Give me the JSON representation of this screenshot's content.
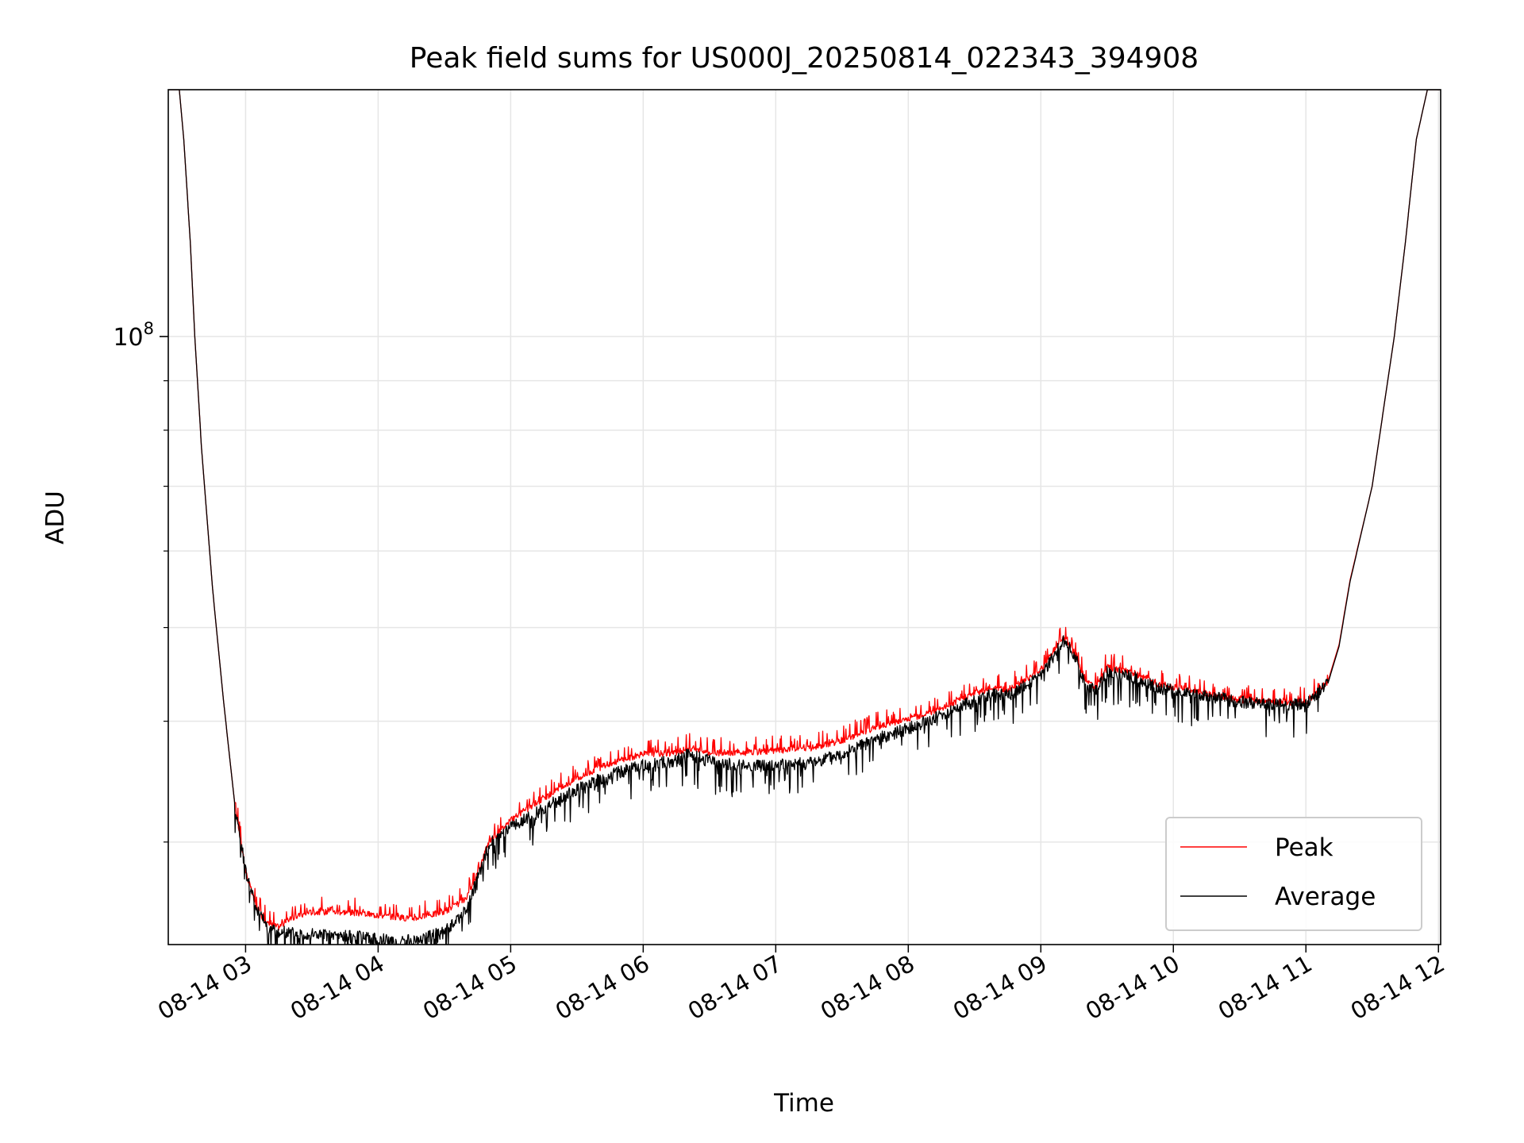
{
  "chart_data": {
    "type": "line",
    "title": "Peak field sums for US000J_20250814_022343_394908",
    "xlabel": "Time",
    "ylabel": "ADU",
    "y_scale": "log",
    "ylim": [
      23500000,
      180000000
    ],
    "xlim": [
      "08-14 02:25",
      "08-14 12:01"
    ],
    "grid": true,
    "legend_position": "lower right",
    "x_ticks": [
      "08-14 03",
      "08-14 04",
      "08-14 05",
      "08-14 06",
      "08-14 07",
      "08-14 08",
      "08-14 09",
      "08-14 10",
      "08-14 11",
      "08-14 12"
    ],
    "y_ticks": [
      {
        "value": 100000000,
        "base": "10",
        "exp": "8"
      }
    ],
    "series": [
      {
        "name": "Peak",
        "color": "#ff0000",
        "x": [
          "02:25",
          "02:30",
          "02:32",
          "02:35",
          "02:37",
          "02:40",
          "02:45",
          "02:50",
          "02:55",
          "03:00",
          "03:05",
          "03:10",
          "03:15",
          "03:20",
          "03:30",
          "03:45",
          "04:00",
          "04:15",
          "04:30",
          "04:40",
          "04:45",
          "04:50",
          "05:00",
          "05:15",
          "05:30",
          "05:45",
          "06:00",
          "06:15",
          "06:20",
          "06:30",
          "06:45",
          "07:00",
          "07:15",
          "07:30",
          "07:45",
          "08:00",
          "08:15",
          "08:30",
          "08:40",
          "08:45",
          "09:00",
          "09:10",
          "09:15",
          "09:20",
          "09:25",
          "09:30",
          "09:40",
          "09:45",
          "09:55",
          "10:05",
          "10:15",
          "10:30",
          "10:45",
          "11:00",
          "11:10",
          "11:15",
          "11:20",
          "11:30",
          "11:40",
          "11:45",
          "11:50",
          "11:55",
          "12:00",
          "12:01"
        ],
        "values": [
          180000000,
          180000000,
          160000000,
          125000000,
          100000000,
          77000000,
          55000000,
          42000000,
          33000000,
          28000000,
          25600000,
          24700000,
          24500000,
          25000000,
          25400000,
          25400000,
          25200000,
          25000000,
          25400000,
          26200000,
          27800000,
          30000000,
          31600000,
          33300000,
          34900000,
          36200000,
          37000000,
          37100000,
          37500000,
          37100000,
          37100000,
          37300000,
          37500000,
          38200000,
          39400000,
          40200000,
          41200000,
          42800000,
          43400000,
          43000000,
          45200000,
          49000000,
          47200000,
          44000000,
          43300000,
          45500000,
          45000000,
          44500000,
          43500000,
          43200000,
          42700000,
          42100000,
          41900000,
          41800000,
          44000000,
          48000000,
          56000000,
          70000000,
          100000000,
          125000000,
          160000000,
          180000000,
          180000000,
          180000000
        ]
      },
      {
        "name": "Average",
        "color": "#000000",
        "x": [
          "02:25",
          "02:30",
          "02:32",
          "02:35",
          "02:37",
          "02:40",
          "02:45",
          "02:50",
          "02:55",
          "03:00",
          "03:05",
          "03:10",
          "03:15",
          "03:20",
          "03:30",
          "03:45",
          "04:00",
          "04:15",
          "04:30",
          "04:40",
          "04:45",
          "04:50",
          "05:00",
          "05:15",
          "05:30",
          "05:45",
          "06:00",
          "06:15",
          "06:20",
          "06:30",
          "06:45",
          "07:00",
          "07:15",
          "07:30",
          "07:45",
          "08:00",
          "08:15",
          "08:30",
          "08:40",
          "08:45",
          "09:00",
          "09:10",
          "09:15",
          "09:20",
          "09:25",
          "09:30",
          "09:40",
          "09:45",
          "09:55",
          "10:05",
          "10:15",
          "10:30",
          "10:45",
          "11:00",
          "11:10",
          "11:15",
          "11:20",
          "11:30",
          "11:40",
          "11:45",
          "11:50",
          "11:55",
          "12:00",
          "12:01"
        ],
        "values": [
          180000000,
          180000000,
          160000000,
          125000000,
          100000000,
          77000000,
          55000000,
          42000000,
          33000000,
          28000000,
          25600000,
          24500000,
          24200000,
          24200000,
          24100000,
          24000000,
          23800000,
          23700000,
          24200000,
          25500000,
          27500000,
          29800000,
          31000000,
          32500000,
          34000000,
          35200000,
          36000000,
          36400000,
          37000000,
          36400000,
          36000000,
          36000000,
          36200000,
          37000000,
          38300000,
          39300000,
          40600000,
          42000000,
          42800000,
          42500000,
          44500000,
          48500000,
          47000000,
          43800000,
          43100000,
          45000000,
          44500000,
          44200000,
          43200000,
          42900000,
          42500000,
          41900000,
          41600000,
          41600000,
          43800000,
          47800000,
          55800000,
          70000000,
          100000000,
          125000000,
          160000000,
          180000000,
          180000000,
          180000000
        ]
      }
    ]
  }
}
